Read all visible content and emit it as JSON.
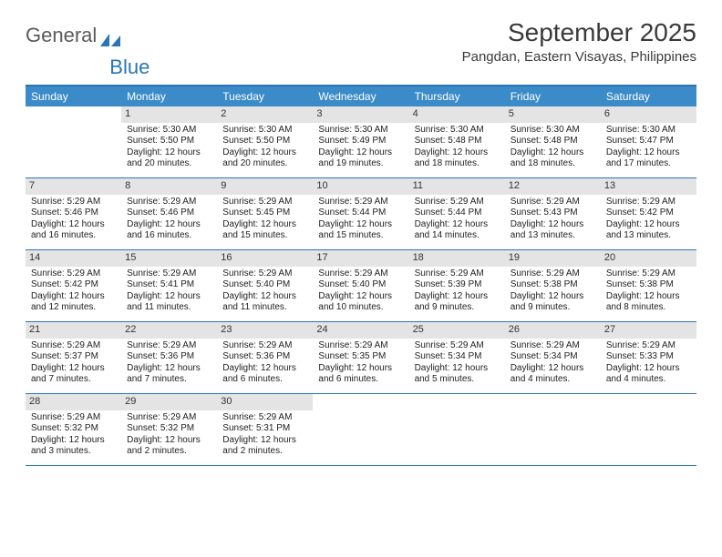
{
  "brand": {
    "word1": "General",
    "word2": "Blue"
  },
  "title": "September 2025",
  "location": "Pangdan, Eastern Visayas, Philippines",
  "colors": {
    "header_bar": "#3b8bc9",
    "border": "#2a74b8",
    "daynum_bg": "#e4e4e4",
    "text": "#222222",
    "page_bg": "#ffffff"
  },
  "dow": [
    "Sunday",
    "Monday",
    "Tuesday",
    "Wednesday",
    "Thursday",
    "Friday",
    "Saturday"
  ],
  "weeks": [
    [
      {
        "n": "",
        "l1": "",
        "l2": "",
        "l3": "",
        "l4": "",
        "blank": true
      },
      {
        "n": "1",
        "l1": "Sunrise: 5:30 AM",
        "l2": "Sunset: 5:50 PM",
        "l3": "Daylight: 12 hours",
        "l4": "and 20 minutes."
      },
      {
        "n": "2",
        "l1": "Sunrise: 5:30 AM",
        "l2": "Sunset: 5:50 PM",
        "l3": "Daylight: 12 hours",
        "l4": "and 20 minutes."
      },
      {
        "n": "3",
        "l1": "Sunrise: 5:30 AM",
        "l2": "Sunset: 5:49 PM",
        "l3": "Daylight: 12 hours",
        "l4": "and 19 minutes."
      },
      {
        "n": "4",
        "l1": "Sunrise: 5:30 AM",
        "l2": "Sunset: 5:48 PM",
        "l3": "Daylight: 12 hours",
        "l4": "and 18 minutes."
      },
      {
        "n": "5",
        "l1": "Sunrise: 5:30 AM",
        "l2": "Sunset: 5:48 PM",
        "l3": "Daylight: 12 hours",
        "l4": "and 18 minutes."
      },
      {
        "n": "6",
        "l1": "Sunrise: 5:30 AM",
        "l2": "Sunset: 5:47 PM",
        "l3": "Daylight: 12 hours",
        "l4": "and 17 minutes."
      }
    ],
    [
      {
        "n": "7",
        "l1": "Sunrise: 5:29 AM",
        "l2": "Sunset: 5:46 PM",
        "l3": "Daylight: 12 hours",
        "l4": "and 16 minutes."
      },
      {
        "n": "8",
        "l1": "Sunrise: 5:29 AM",
        "l2": "Sunset: 5:46 PM",
        "l3": "Daylight: 12 hours",
        "l4": "and 16 minutes."
      },
      {
        "n": "9",
        "l1": "Sunrise: 5:29 AM",
        "l2": "Sunset: 5:45 PM",
        "l3": "Daylight: 12 hours",
        "l4": "and 15 minutes."
      },
      {
        "n": "10",
        "l1": "Sunrise: 5:29 AM",
        "l2": "Sunset: 5:44 PM",
        "l3": "Daylight: 12 hours",
        "l4": "and 15 minutes."
      },
      {
        "n": "11",
        "l1": "Sunrise: 5:29 AM",
        "l2": "Sunset: 5:44 PM",
        "l3": "Daylight: 12 hours",
        "l4": "and 14 minutes."
      },
      {
        "n": "12",
        "l1": "Sunrise: 5:29 AM",
        "l2": "Sunset: 5:43 PM",
        "l3": "Daylight: 12 hours",
        "l4": "and 13 minutes."
      },
      {
        "n": "13",
        "l1": "Sunrise: 5:29 AM",
        "l2": "Sunset: 5:42 PM",
        "l3": "Daylight: 12 hours",
        "l4": "and 13 minutes."
      }
    ],
    [
      {
        "n": "14",
        "l1": "Sunrise: 5:29 AM",
        "l2": "Sunset: 5:42 PM",
        "l3": "Daylight: 12 hours",
        "l4": "and 12 minutes."
      },
      {
        "n": "15",
        "l1": "Sunrise: 5:29 AM",
        "l2": "Sunset: 5:41 PM",
        "l3": "Daylight: 12 hours",
        "l4": "and 11 minutes."
      },
      {
        "n": "16",
        "l1": "Sunrise: 5:29 AM",
        "l2": "Sunset: 5:40 PM",
        "l3": "Daylight: 12 hours",
        "l4": "and 11 minutes."
      },
      {
        "n": "17",
        "l1": "Sunrise: 5:29 AM",
        "l2": "Sunset: 5:40 PM",
        "l3": "Daylight: 12 hours",
        "l4": "and 10 minutes."
      },
      {
        "n": "18",
        "l1": "Sunrise: 5:29 AM",
        "l2": "Sunset: 5:39 PM",
        "l3": "Daylight: 12 hours",
        "l4": "and 9 minutes."
      },
      {
        "n": "19",
        "l1": "Sunrise: 5:29 AM",
        "l2": "Sunset: 5:38 PM",
        "l3": "Daylight: 12 hours",
        "l4": "and 9 minutes."
      },
      {
        "n": "20",
        "l1": "Sunrise: 5:29 AM",
        "l2": "Sunset: 5:38 PM",
        "l3": "Daylight: 12 hours",
        "l4": "and 8 minutes."
      }
    ],
    [
      {
        "n": "21",
        "l1": "Sunrise: 5:29 AM",
        "l2": "Sunset: 5:37 PM",
        "l3": "Daylight: 12 hours",
        "l4": "and 7 minutes."
      },
      {
        "n": "22",
        "l1": "Sunrise: 5:29 AM",
        "l2": "Sunset: 5:36 PM",
        "l3": "Daylight: 12 hours",
        "l4": "and 7 minutes."
      },
      {
        "n": "23",
        "l1": "Sunrise: 5:29 AM",
        "l2": "Sunset: 5:36 PM",
        "l3": "Daylight: 12 hours",
        "l4": "and 6 minutes."
      },
      {
        "n": "24",
        "l1": "Sunrise: 5:29 AM",
        "l2": "Sunset: 5:35 PM",
        "l3": "Daylight: 12 hours",
        "l4": "and 6 minutes."
      },
      {
        "n": "25",
        "l1": "Sunrise: 5:29 AM",
        "l2": "Sunset: 5:34 PM",
        "l3": "Daylight: 12 hours",
        "l4": "and 5 minutes."
      },
      {
        "n": "26",
        "l1": "Sunrise: 5:29 AM",
        "l2": "Sunset: 5:34 PM",
        "l3": "Daylight: 12 hours",
        "l4": "and 4 minutes."
      },
      {
        "n": "27",
        "l1": "Sunrise: 5:29 AM",
        "l2": "Sunset: 5:33 PM",
        "l3": "Daylight: 12 hours",
        "l4": "and 4 minutes."
      }
    ],
    [
      {
        "n": "28",
        "l1": "Sunrise: 5:29 AM",
        "l2": "Sunset: 5:32 PM",
        "l3": "Daylight: 12 hours",
        "l4": "and 3 minutes."
      },
      {
        "n": "29",
        "l1": "Sunrise: 5:29 AM",
        "l2": "Sunset: 5:32 PM",
        "l3": "Daylight: 12 hours",
        "l4": "and 2 minutes."
      },
      {
        "n": "30",
        "l1": "Sunrise: 5:29 AM",
        "l2": "Sunset: 5:31 PM",
        "l3": "Daylight: 12 hours",
        "l4": "and 2 minutes."
      },
      {
        "n": "",
        "l1": "",
        "l2": "",
        "l3": "",
        "l4": "",
        "blank": true
      },
      {
        "n": "",
        "l1": "",
        "l2": "",
        "l3": "",
        "l4": "",
        "blank": true
      },
      {
        "n": "",
        "l1": "",
        "l2": "",
        "l3": "",
        "l4": "",
        "blank": true
      },
      {
        "n": "",
        "l1": "",
        "l2": "",
        "l3": "",
        "l4": "",
        "blank": true
      }
    ]
  ]
}
